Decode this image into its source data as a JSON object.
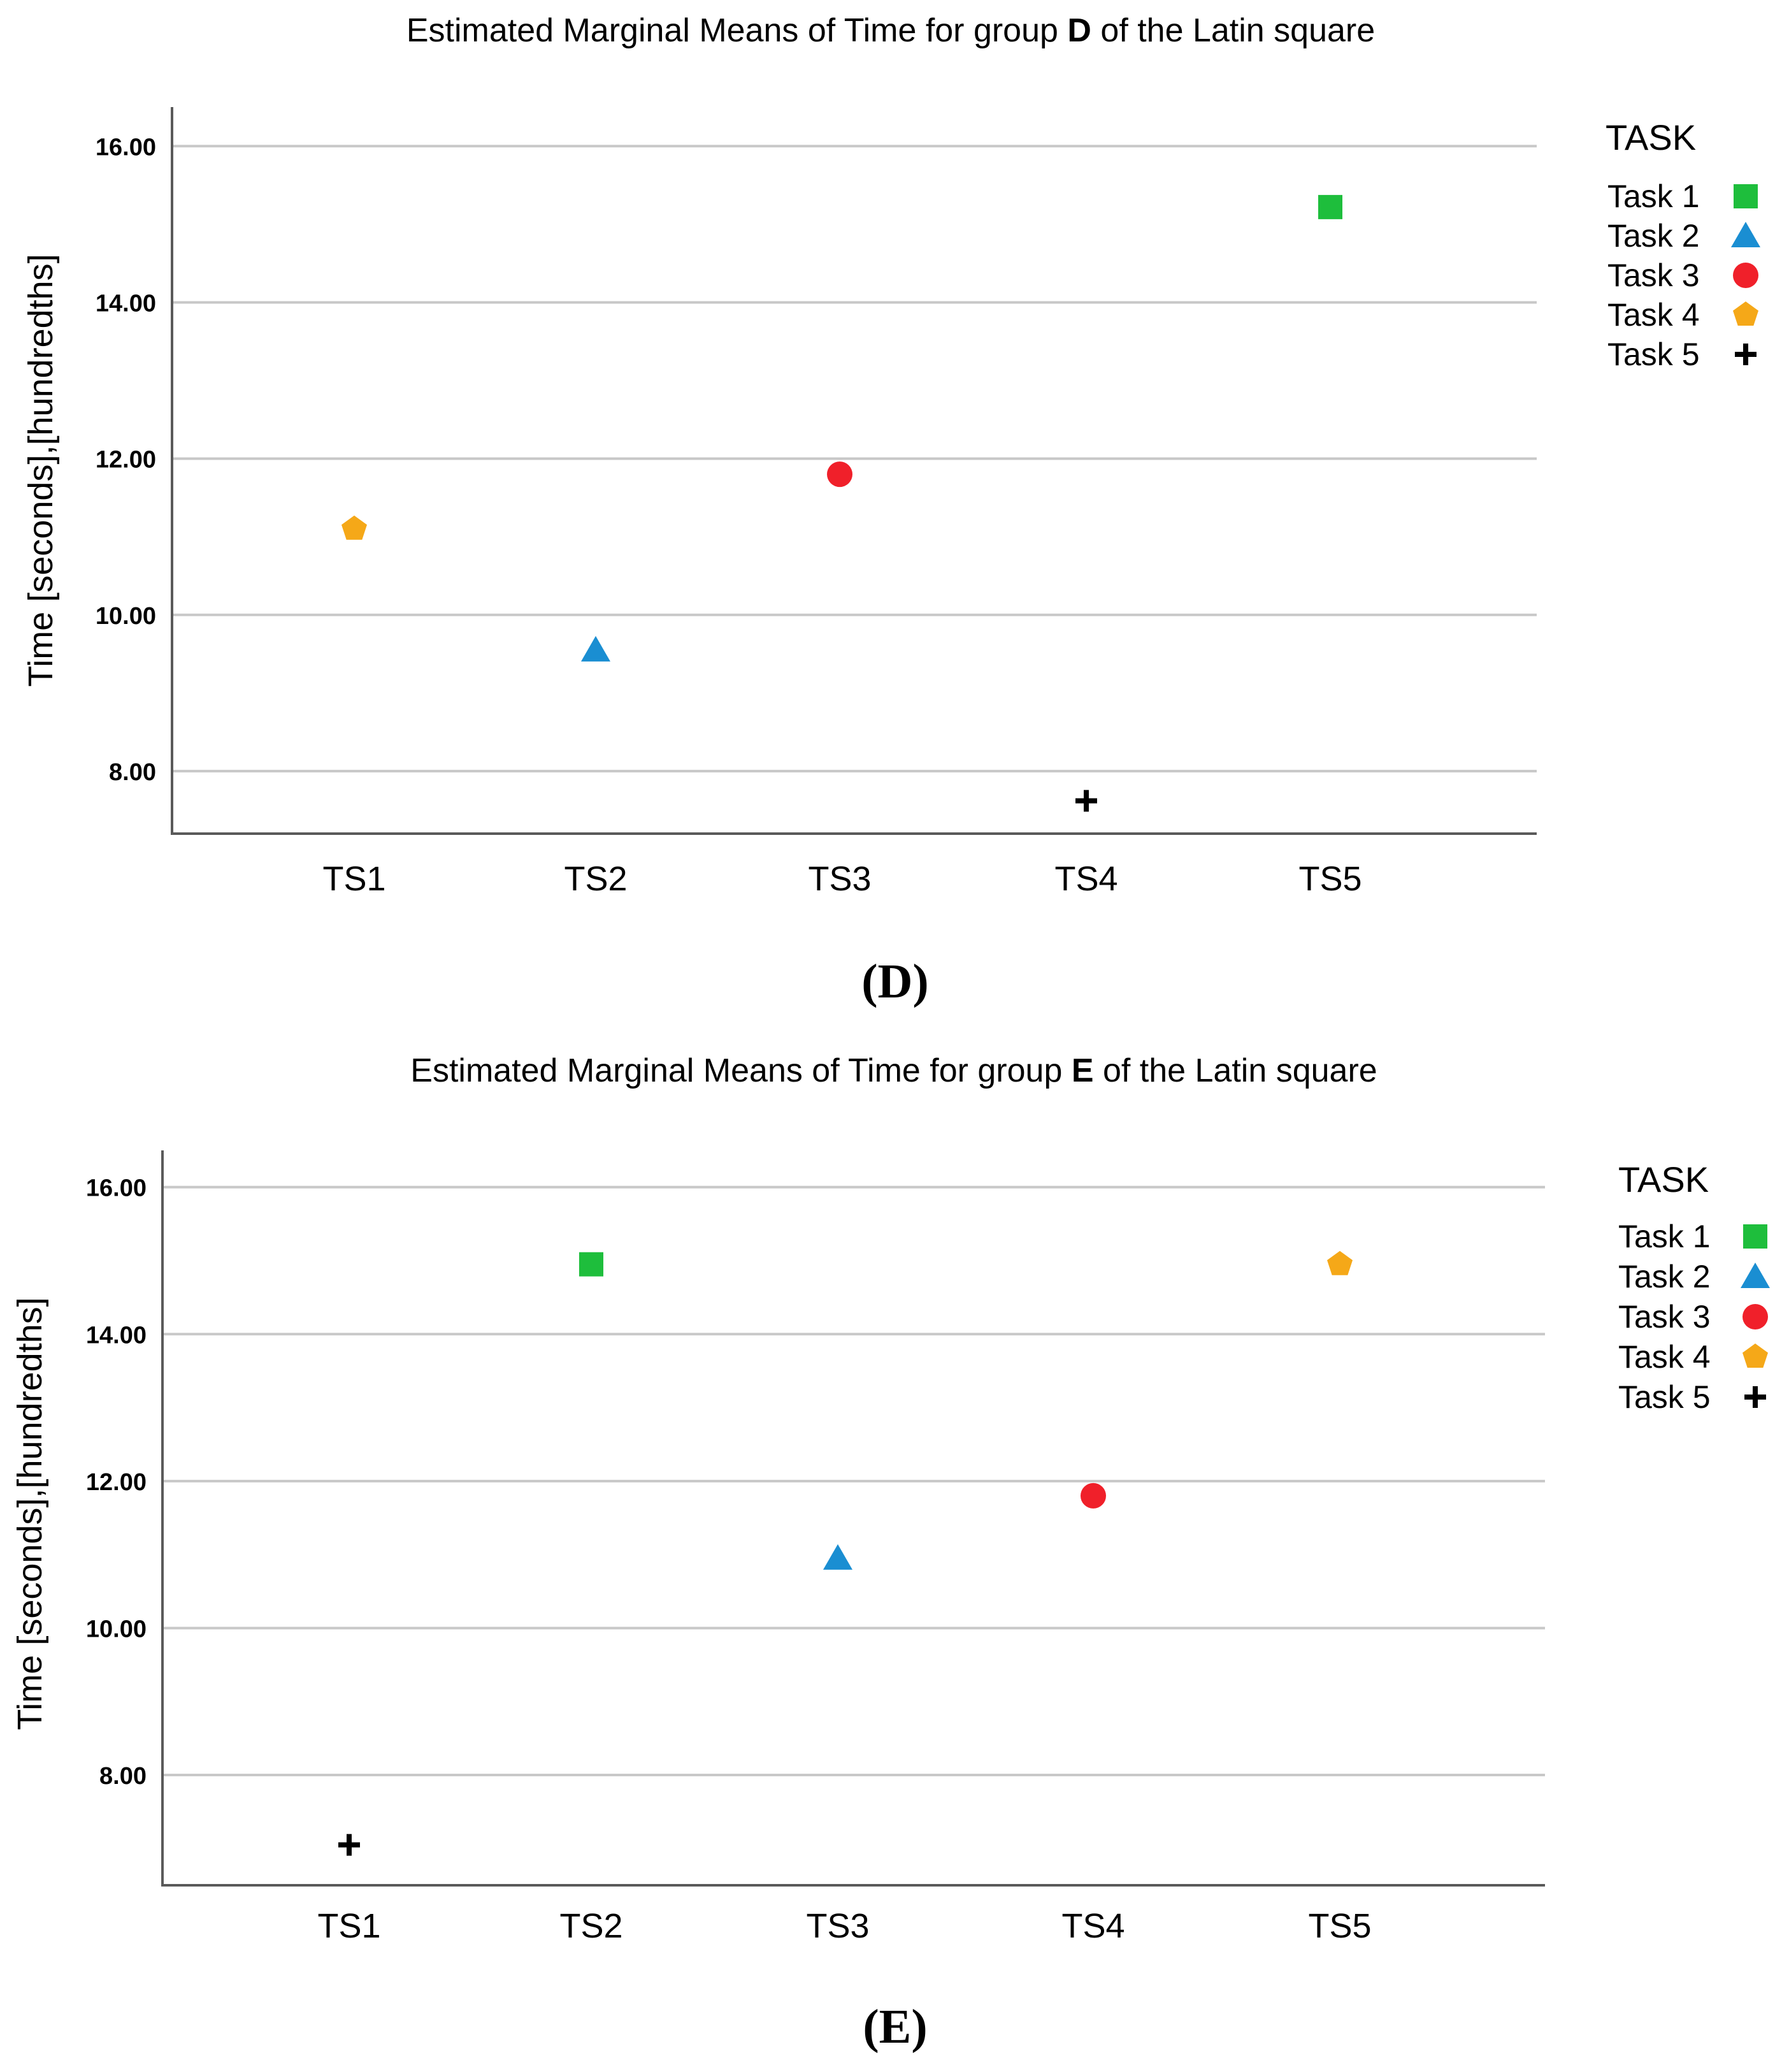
{
  "chart_data": [
    {
      "type": "scatter",
      "panel": "(D)",
      "title_prefix": "Estimated Marginal Means of Time for group ",
      "title_group": "D",
      "title_suffix": " of the Latin square",
      "xlabel": "",
      "ylabel": "Time [seconds],[hundredths]",
      "categories": [
        "TS1",
        "TS2",
        "TS3",
        "TS4",
        "TS5"
      ],
      "yticks": [
        "8.00",
        "10.00",
        "12.00",
        "14.00",
        "16.00"
      ],
      "ylim": [
        7.2,
        16.5
      ],
      "legend_title": "TASK",
      "series": [
        {
          "name": "Task 1",
          "color": "#1ebe3c",
          "marker": "square",
          "category": "TS5",
          "value": 15.22
        },
        {
          "name": "Task 2",
          "color": "#1a8ed2",
          "marker": "triangle",
          "category": "TS2",
          "value": 9.55
        },
        {
          "name": "Task 3",
          "color": "#f0202a",
          "marker": "circle",
          "category": "TS3",
          "value": 11.8
        },
        {
          "name": "Task 4",
          "color": "#f5a818",
          "marker": "pentagon",
          "category": "TS1",
          "value": 11.1
        },
        {
          "name": "Task 5",
          "color": "#000000",
          "marker": "cross",
          "category": "TS4",
          "value": 7.62
        }
      ]
    },
    {
      "type": "scatter",
      "panel": "(E)",
      "title_prefix": "Estimated Marginal Means of Time for group ",
      "title_group": "E",
      "title_suffix": " of the Latin square",
      "xlabel": "",
      "ylabel": "Time [seconds],[hundredths]",
      "categories": [
        "TS1",
        "TS2",
        "TS3",
        "TS4",
        "TS5"
      ],
      "yticks": [
        "8.00",
        "10.00",
        "12.00",
        "14.00",
        "16.00"
      ],
      "ylim": [
        6.5,
        16.5
      ],
      "legend_title": "TASK",
      "series": [
        {
          "name": "Task 1",
          "color": "#1ebe3c",
          "marker": "square",
          "category": "TS2",
          "value": 14.95
        },
        {
          "name": "Task 2",
          "color": "#1a8ed2",
          "marker": "triangle",
          "category": "TS3",
          "value": 10.95
        },
        {
          "name": "Task 3",
          "color": "#f0202a",
          "marker": "circle",
          "category": "TS4",
          "value": 11.8
        },
        {
          "name": "Task 4",
          "color": "#f5a818",
          "marker": "pentagon",
          "category": "TS5",
          "value": 14.95
        },
        {
          "name": "Task 5",
          "color": "#000000",
          "marker": "cross",
          "category": "TS1",
          "value": 7.05
        }
      ]
    }
  ]
}
